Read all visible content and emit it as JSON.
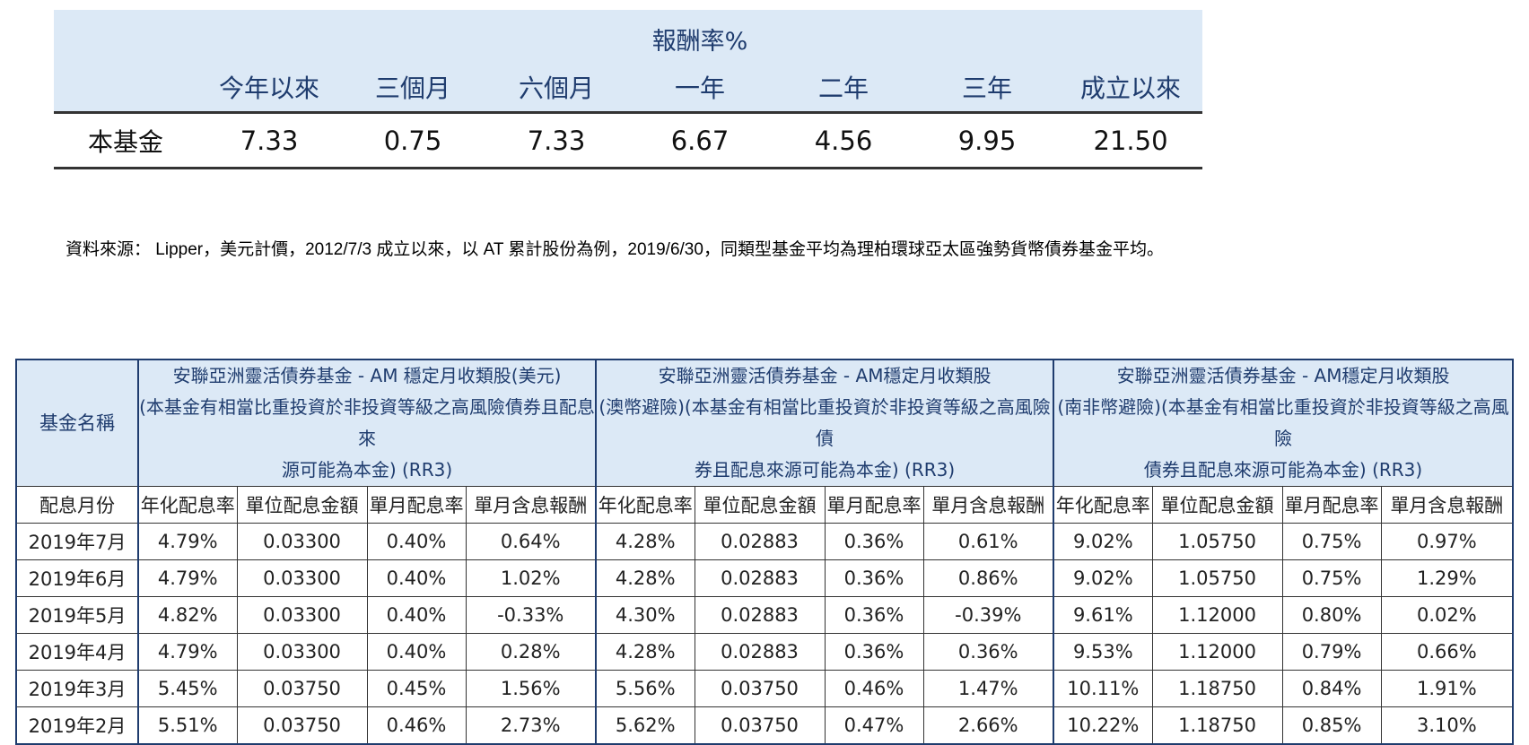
{
  "returns": {
    "title": "報酬率%",
    "columns": [
      "今年以來",
      "三個月",
      "六個月",
      "一年",
      "二年",
      "三年",
      "成立以來"
    ],
    "row": {
      "label": "本基金",
      "values": [
        "7.33",
        "0.75",
        "7.33",
        "6.67",
        "4.56",
        "9.95",
        "21.50"
      ]
    }
  },
  "note": "資料來源： Lipper，美元計價，2012/7/3 成立以來，以 AT 累計股份為例，2019/6/30，同類型基金平均為理柏環球亞太區強勢貨幣債券基金平均。",
  "dividend": {
    "name_header": "基金名稱",
    "funds": [
      {
        "lines": [
          "安聯亞洲靈活債券基金 - AM 穩定月收類股(美元)",
          "(本基金有相當比重投資於非投資等級之高風險債券且配息來",
          "源可能為本金) (RR3)"
        ]
      },
      {
        "lines": [
          "安聯亞洲靈活債券基金 - AM穩定月收類股",
          "(澳幣避險)(本基金有相當比重投資於非投資等級之高風險債",
          "券且配息來源可能為本金) (RR3)"
        ]
      },
      {
        "lines": [
          "安聯亞洲靈活債券基金 - AM穩定月收類股",
          "(南非幣避險)(本基金有相當比重投資於非投資等級之高風險",
          "債券且配息來源可能為本金) (RR3)"
        ]
      }
    ],
    "month_header": "配息月份",
    "sub_headers": [
      "年化配息率",
      "單位配息金額",
      "單月配息率",
      "單月含息報酬"
    ],
    "rows": [
      {
        "month": "2019年7月",
        "values": [
          "4.79%",
          "0.03300",
          "0.40%",
          "0.64%",
          "4.28%",
          "0.02883",
          "0.36%",
          "0.61%",
          "9.02%",
          "1.05750",
          "0.75%",
          "0.97%"
        ]
      },
      {
        "month": "2019年6月",
        "values": [
          "4.79%",
          "0.03300",
          "0.40%",
          "1.02%",
          "4.28%",
          "0.02883",
          "0.36%",
          "0.86%",
          "9.02%",
          "1.05750",
          "0.75%",
          "1.29%"
        ]
      },
      {
        "month": "2019年5月",
        "values": [
          "4.82%",
          "0.03300",
          "0.40%",
          "-0.33%",
          "4.30%",
          "0.02883",
          "0.36%",
          "-0.39%",
          "9.61%",
          "1.12000",
          "0.80%",
          "0.02%"
        ]
      },
      {
        "month": "2019年4月",
        "values": [
          "4.79%",
          "0.03300",
          "0.40%",
          "0.28%",
          "4.28%",
          "0.02883",
          "0.36%",
          "0.36%",
          "9.53%",
          "1.12000",
          "0.79%",
          "0.66%"
        ]
      },
      {
        "month": "2019年3月",
        "values": [
          "5.45%",
          "0.03750",
          "0.45%",
          "1.56%",
          "5.56%",
          "0.03750",
          "0.46%",
          "1.47%",
          "10.11%",
          "1.18750",
          "0.84%",
          "1.91%"
        ]
      },
      {
        "month": "2019年2月",
        "values": [
          "5.51%",
          "0.03750",
          "0.46%",
          "2.73%",
          "5.62%",
          "0.03750",
          "0.47%",
          "2.66%",
          "10.22%",
          "1.18750",
          "0.85%",
          "3.10%"
        ]
      }
    ]
  }
}
